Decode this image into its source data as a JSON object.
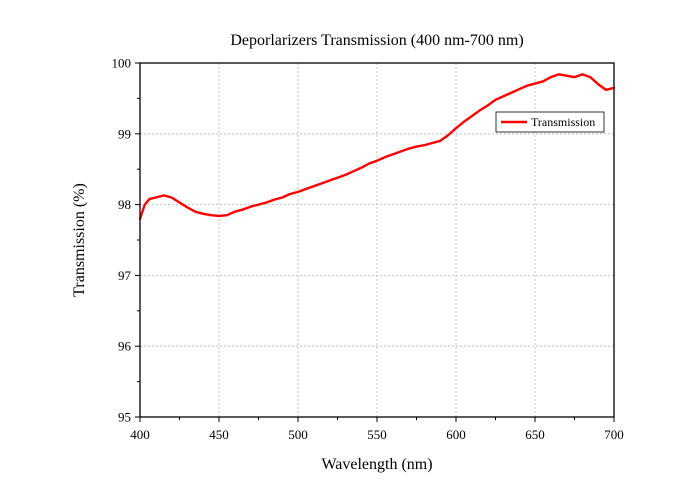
{
  "chart_data": {
    "type": "line",
    "title": "Deporlarizers Transmission (400 nm-700 nm)",
    "xlabel": "Wavelength (nm)",
    "ylabel": "Transmission (%)",
    "xlim": [
      400,
      700
    ],
    "ylim": [
      95,
      100
    ],
    "xticks": [
      400,
      450,
      500,
      550,
      600,
      650,
      700
    ],
    "yticks": [
      95,
      96,
      97,
      98,
      99,
      100
    ],
    "grid": true,
    "legend_position": "top-right",
    "series": [
      {
        "name": "Transmission",
        "color": "#ff0000",
        "x": [
          400,
          403,
          406,
          410,
          415,
          420,
          425,
          430,
          435,
          440,
          445,
          450,
          455,
          460,
          465,
          470,
          475,
          480,
          485,
          490,
          495,
          500,
          505,
          510,
          515,
          520,
          525,
          530,
          535,
          540,
          545,
          550,
          555,
          560,
          565,
          570,
          575,
          580,
          585,
          590,
          595,
          600,
          605,
          610,
          615,
          620,
          625,
          630,
          635,
          640,
          645,
          650,
          655,
          660,
          665,
          670,
          675,
          680,
          685,
          690,
          695,
          700
        ],
        "y": [
          97.8,
          98.0,
          98.08,
          98.1,
          98.13,
          98.1,
          98.03,
          97.96,
          97.9,
          97.87,
          97.85,
          97.84,
          97.85,
          97.9,
          97.93,
          97.97,
          98.0,
          98.03,
          98.07,
          98.1,
          98.15,
          98.18,
          98.22,
          98.26,
          98.3,
          98.34,
          98.38,
          98.42,
          98.47,
          98.52,
          98.58,
          98.62,
          98.67,
          98.71,
          98.75,
          98.79,
          98.82,
          98.84,
          98.87,
          98.9,
          98.98,
          99.08,
          99.17,
          99.25,
          99.33,
          99.4,
          99.48,
          99.53,
          99.58,
          99.63,
          99.68,
          99.71,
          99.74,
          99.8,
          99.84,
          99.82,
          99.8,
          99.84,
          99.8,
          99.7,
          99.62,
          99.65
        ]
      }
    ]
  }
}
